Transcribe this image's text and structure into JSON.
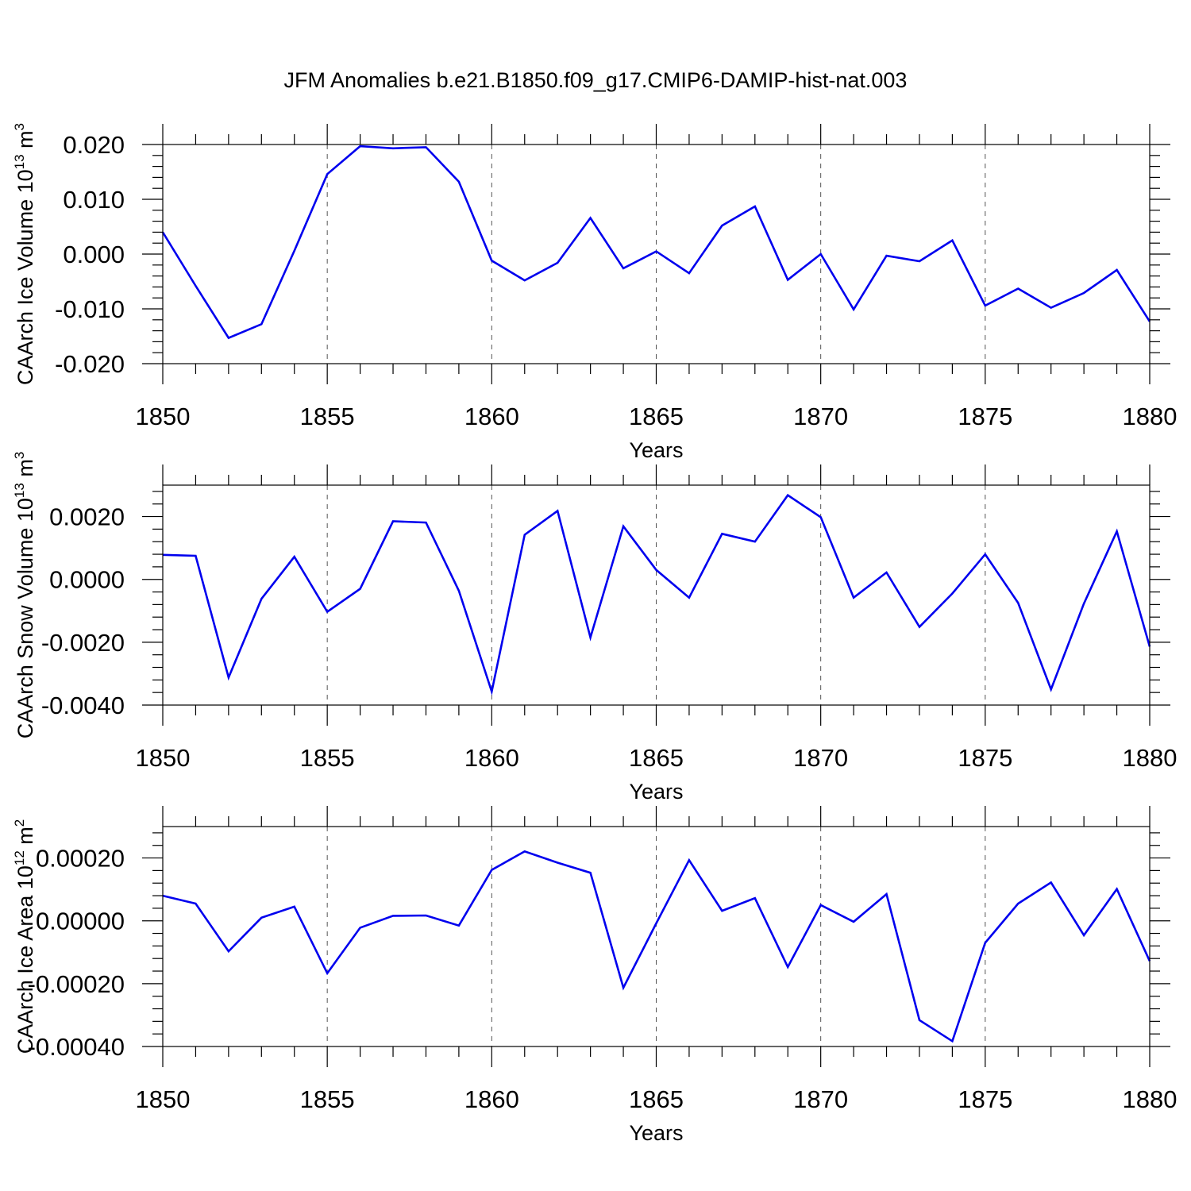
{
  "figure": {
    "title": "JFM Anomalies b.e21.B1850.f09_g17.CMIP6-DAMIP-hist-nat.003"
  },
  "colors": {
    "line": "#0000ee",
    "axis": "#000000",
    "grid": "#555555"
  },
  "chart_data": [
    {
      "type": "line",
      "title": "",
      "xlabel": "Years",
      "ylabel": {
        "main": "CAArch Ice Volume 10",
        "sup": "13",
        "unit": " m",
        "unit_sup": "3"
      },
      "xlim": [
        1850,
        1880
      ],
      "ylim": [
        -0.02,
        0.02
      ],
      "xticks": [
        "1850",
        "1855",
        "1860",
        "1865",
        "1870",
        "1875",
        "1880"
      ],
      "yticks": [
        {
          "value": -0.02,
          "label": "-0.020"
        },
        {
          "value": -0.01,
          "label": "-0.010"
        },
        {
          "value": 0.0,
          "label": "0.000"
        },
        {
          "value": 0.01,
          "label": "0.010"
        },
        {
          "value": 0.02,
          "label": "0.020"
        }
      ],
      "grid": "vertical dashed at major x ticks",
      "x": [
        1850,
        1851,
        1852,
        1853,
        1854,
        1855,
        1856,
        1857,
        1858,
        1859,
        1860,
        1861,
        1862,
        1863,
        1864,
        1865,
        1866,
        1867,
        1868,
        1869,
        1870,
        1871,
        1872,
        1873,
        1874,
        1875,
        1876,
        1877,
        1878,
        1879,
        1880
      ],
      "values": [
        0.004,
        -0.0058,
        -0.0153,
        -0.0128,
        0.0006,
        0.0146,
        0.0197,
        0.0193,
        0.0195,
        0.0132,
        -0.0012,
        -0.0048,
        -0.0016,
        0.0066,
        -0.0026,
        0.0005,
        -0.0035,
        0.0052,
        0.0087,
        -0.0047,
        0.0,
        -0.0101,
        -0.0003,
        -0.0013,
        0.0025,
        -0.0094,
        -0.0063,
        -0.0098,
        -0.0071,
        -0.0029,
        -0.0123
      ]
    },
    {
      "type": "line",
      "title": "",
      "xlabel": "Years",
      "ylabel": {
        "main": "CAArch Snow Volume 10",
        "sup": "13",
        "unit": " m",
        "unit_sup": "3"
      },
      "xlim": [
        1850,
        1880
      ],
      "ylim": [
        -0.004,
        0.003
      ],
      "xticks": [
        "1850",
        "1855",
        "1860",
        "1865",
        "1870",
        "1875",
        "1880"
      ],
      "yticks": [
        {
          "value": -0.004,
          "label": "-0.0040"
        },
        {
          "value": -0.002,
          "label": "-0.0020"
        },
        {
          "value": 0.0,
          "label": "0.0000"
        },
        {
          "value": 0.002,
          "label": "0.0020"
        }
      ],
      "grid": "vertical dashed at major x ticks",
      "x": [
        1850,
        1851,
        1852,
        1853,
        1854,
        1855,
        1856,
        1857,
        1858,
        1859,
        1860,
        1861,
        1862,
        1863,
        1864,
        1865,
        1866,
        1867,
        1868,
        1869,
        1870,
        1871,
        1872,
        1873,
        1874,
        1875,
        1876,
        1877,
        1878,
        1879,
        1880
      ],
      "values": [
        0.00078,
        0.00075,
        -0.00312,
        -0.00062,
        0.00072,
        -0.00103,
        -0.0003,
        0.00185,
        0.00181,
        -0.00036,
        -0.00357,
        0.00142,
        0.00218,
        -0.00185,
        0.00169,
        0.0003,
        -0.00058,
        0.00145,
        0.0012,
        0.00268,
        0.00198,
        -0.00058,
        0.00022,
        -0.00151,
        -0.00045,
        0.0008,
        -0.00075,
        -0.0035,
        -0.00077,
        0.00153,
        -0.00214
      ]
    },
    {
      "type": "line",
      "title": "",
      "xlabel": "Years",
      "ylabel": {
        "main": "CAArch Ice Area 10",
        "sup": "12",
        "unit": " m",
        "unit_sup": "2"
      },
      "xlim": [
        1850,
        1880
      ],
      "ylim": [
        -0.0004,
        0.0003
      ],
      "xticks": [
        "1850",
        "1855",
        "1860",
        "1865",
        "1870",
        "1875",
        "1880"
      ],
      "yticks": [
        {
          "value": -0.0004,
          "label": "-0.00040"
        },
        {
          "value": -0.0002,
          "label": "-0.00020"
        },
        {
          "value": 0.0,
          "label": "0.00000"
        },
        {
          "value": 0.0002,
          "label": "0.00020"
        }
      ],
      "grid": "vertical dashed at major x ticks",
      "x": [
        1850,
        1851,
        1852,
        1853,
        1854,
        1855,
        1856,
        1857,
        1858,
        1859,
        1860,
        1861,
        1862,
        1863,
        1864,
        1865,
        1866,
        1867,
        1868,
        1869,
        1870,
        1871,
        1872,
        1873,
        1874,
        1875,
        1876,
        1877,
        1878,
        1879,
        1880
      ],
      "values": [
        8e-05,
        5.5e-05,
        -9.7e-05,
        1e-05,
        4.5e-05,
        -0.000167,
        -2.2e-05,
        1.6e-05,
        1.7e-05,
        -1.5e-05,
        0.000162,
        0.000221,
        0.000185,
        0.000153,
        -0.000213,
        -8e-06,
        0.000193,
        3.2e-05,
        7.2e-05,
        -0.000147,
        5e-05,
        -3e-06,
        8.5e-05,
        -0.000316,
        -0.000383,
        -7e-05,
        5.5e-05,
        0.000122,
        -4.6e-05,
        0.000101,
        -0.000128
      ]
    }
  ]
}
